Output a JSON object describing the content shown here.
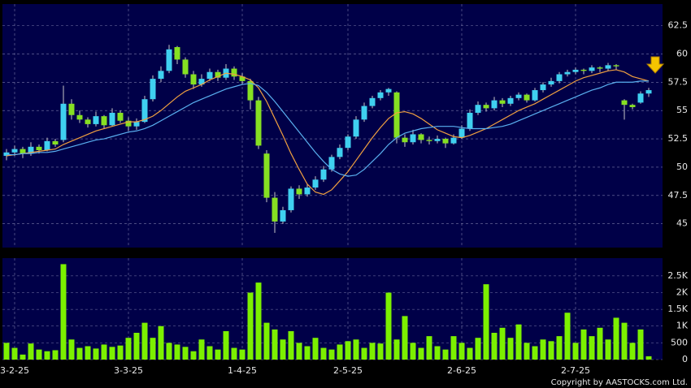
{
  "chart_data": [
    {
      "type": "candlestick",
      "up_color": "#3fd0f0",
      "down_color": "#86e022",
      "wick_color": "#c8c8c8",
      "grid": true,
      "ylim": [
        42.9,
        64.4
      ],
      "yticks": [
        45,
        47.5,
        50,
        52.5,
        55,
        57.5,
        60,
        62.5
      ],
      "ohlc": [
        [
          51.0,
          51.6,
          50.6,
          51.3
        ],
        [
          51.3,
          51.9,
          51.0,
          51.6
        ],
        [
          51.6,
          51.8,
          50.8,
          51.2
        ],
        [
          51.2,
          52.2,
          51.0,
          51.8
        ],
        [
          51.8,
          52.0,
          51.2,
          51.5
        ],
        [
          51.5,
          52.6,
          51.4,
          52.3
        ],
        [
          52.3,
          52.5,
          51.8,
          52.0
        ],
        [
          52.4,
          57.2,
          52.2,
          55.6
        ],
        [
          55.6,
          56.0,
          54.2,
          54.6
        ],
        [
          54.6,
          55.0,
          53.9,
          54.2
        ],
        [
          54.2,
          54.4,
          53.5,
          53.8
        ],
        [
          53.8,
          54.9,
          53.6,
          54.5
        ],
        [
          54.5,
          54.6,
          53.4,
          53.7
        ],
        [
          53.7,
          55.2,
          53.6,
          54.8
        ],
        [
          54.8,
          55.0,
          53.9,
          54.1
        ],
        [
          54.1,
          54.4,
          53.2,
          53.6
        ],
        [
          53.6,
          54.3,
          53.3,
          54.0
        ],
        [
          54.0,
          56.3,
          53.9,
          56.0
        ],
        [
          56.0,
          58.1,
          55.8,
          57.8
        ],
        [
          57.8,
          58.9,
          57.5,
          58.5
        ],
        [
          58.5,
          60.8,
          58.3,
          60.4
        ],
        [
          60.6,
          60.7,
          59.1,
          59.5
        ],
        [
          59.5,
          59.7,
          57.9,
          58.2
        ],
        [
          58.2,
          58.5,
          56.9,
          57.3
        ],
        [
          57.3,
          58.2,
          57.1,
          57.8
        ],
        [
          57.8,
          58.7,
          57.6,
          58.4
        ],
        [
          58.4,
          58.6,
          57.6,
          57.9
        ],
        [
          57.9,
          59.1,
          57.7,
          58.7
        ],
        [
          58.7,
          58.9,
          57.7,
          58.0
        ],
        [
          58.0,
          58.3,
          57.3,
          57.6
        ],
        [
          57.6,
          57.8,
          55.1,
          55.9
        ],
        [
          55.9,
          56.2,
          51.6,
          51.9
        ],
        [
          51.2,
          51.5,
          46.9,
          47.3
        ],
        [
          47.3,
          47.8,
          44.2,
          45.2
        ],
        [
          45.2,
          46.5,
          45.0,
          46.2
        ],
        [
          46.2,
          48.3,
          46.0,
          48.1
        ],
        [
          48.1,
          48.4,
          47.2,
          47.6
        ],
        [
          47.6,
          48.5,
          47.4,
          48.2
        ],
        [
          48.2,
          49.2,
          48.0,
          48.9
        ],
        [
          48.9,
          50.1,
          48.7,
          49.8
        ],
        [
          49.8,
          51.1,
          49.6,
          50.9
        ],
        [
          50.9,
          52.0,
          50.7,
          51.7
        ],
        [
          51.7,
          52.9,
          51.5,
          52.7
        ],
        [
          52.7,
          54.5,
          52.5,
          54.2
        ],
        [
          54.2,
          55.7,
          54.0,
          55.4
        ],
        [
          55.4,
          56.3,
          55.2,
          56.1
        ],
        [
          56.1,
          56.8,
          55.9,
          56.6
        ],
        [
          56.6,
          57.0,
          56.3,
          56.9
        ],
        [
          56.6,
          56.7,
          52.1,
          52.6
        ],
        [
          52.6,
          52.9,
          51.8,
          52.2
        ],
        [
          52.2,
          53.3,
          52.0,
          52.9
        ],
        [
          52.9,
          53.0,
          52.1,
          52.4
        ],
        [
          52.4,
          52.7,
          52.0,
          52.3
        ],
        [
          52.3,
          52.8,
          52.1,
          52.5
        ],
        [
          52.5,
          52.6,
          51.7,
          52.1
        ],
        [
          52.1,
          52.9,
          52.0,
          52.6
        ],
        [
          52.6,
          53.7,
          52.5,
          53.4
        ],
        [
          53.4,
          55.1,
          53.2,
          54.8
        ],
        [
          54.8,
          55.8,
          54.6,
          55.5
        ],
        [
          55.5,
          55.7,
          54.9,
          55.2
        ],
        [
          55.2,
          56.2,
          55.0,
          55.9
        ],
        [
          55.9,
          56.1,
          55.3,
          55.6
        ],
        [
          55.6,
          56.3,
          55.4,
          56.1
        ],
        [
          56.1,
          56.6,
          55.9,
          56.4
        ],
        [
          56.4,
          56.5,
          55.7,
          55.9
        ],
        [
          55.9,
          57.0,
          55.8,
          56.8
        ],
        [
          56.8,
          57.5,
          56.6,
          57.3
        ],
        [
          57.3,
          57.9,
          57.1,
          57.6
        ],
        [
          57.6,
          58.4,
          57.4,
          58.2
        ],
        [
          58.2,
          58.6,
          58.0,
          58.4
        ],
        [
          58.4,
          58.8,
          58.2,
          58.6
        ],
        [
          58.6,
          58.7,
          58.2,
          58.5
        ],
        [
          58.5,
          59.0,
          58.3,
          58.8
        ],
        [
          58.8,
          58.9,
          58.4,
          58.7
        ],
        [
          58.7,
          59.2,
          58.5,
          59.0
        ],
        [
          59.0,
          59.1,
          58.6,
          58.9
        ],
        [
          55.9,
          56.0,
          54.2,
          55.5
        ],
        [
          55.5,
          55.6,
          55.1,
          55.3
        ],
        [
          55.7,
          56.7,
          55.6,
          56.5
        ],
        [
          56.5,
          57.0,
          56.2,
          56.8
        ]
      ],
      "series": [
        {
          "color": "#f0a040",
          "values": [
            51.0,
            51.1,
            51.2,
            51.3,
            51.4,
            51.5,
            51.6,
            52.0,
            52.3,
            52.6,
            52.9,
            53.2,
            53.4,
            53.6,
            53.8,
            54.0,
            54.0,
            54.2,
            54.5,
            55.0,
            55.6,
            56.2,
            56.7,
            57.0,
            57.3,
            57.7,
            58.0,
            58.3,
            58.2,
            58.0,
            57.7,
            57.0,
            55.8,
            54.3,
            52.8,
            51.2,
            49.8,
            48.5,
            47.8,
            47.6,
            48.0,
            48.8,
            49.6,
            50.6,
            51.6,
            52.6,
            53.5,
            54.3,
            54.8,
            54.9,
            54.7,
            54.3,
            53.8,
            53.3,
            53.0,
            52.7,
            52.6,
            52.8,
            53.1,
            53.4,
            53.8,
            54.2,
            54.6,
            55.0,
            55.3,
            55.6,
            56.0,
            56.4,
            56.8,
            57.2,
            57.6,
            57.9,
            58.1,
            58.3,
            58.5,
            58.6,
            58.4,
            58.0,
            57.8,
            57.6
          ]
        },
        {
          "color": "#5ab0f0",
          "values": [
            51.1,
            51.1,
            51.2,
            51.2,
            51.3,
            51.3,
            51.4,
            51.6,
            51.8,
            52.0,
            52.2,
            52.4,
            52.5,
            52.7,
            52.9,
            53.1,
            53.2,
            53.4,
            53.7,
            54.1,
            54.5,
            54.9,
            55.3,
            55.7,
            56.0,
            56.3,
            56.6,
            56.9,
            57.1,
            57.3,
            57.4,
            57.2,
            56.6,
            55.8,
            54.9,
            54.0,
            53.1,
            52.2,
            51.3,
            50.5,
            49.8,
            49.4,
            49.2,
            49.3,
            49.8,
            50.5,
            51.2,
            52.0,
            52.6,
            53.0,
            53.2,
            53.4,
            53.5,
            53.6,
            53.6,
            53.6,
            53.5,
            53.4,
            53.4,
            53.4,
            53.5,
            53.6,
            53.8,
            54.1,
            54.4,
            54.7,
            55.0,
            55.3,
            55.6,
            55.9,
            56.2,
            56.5,
            56.8,
            57.0,
            57.3,
            57.5,
            57.5,
            57.5,
            57.6,
            57.6
          ]
        }
      ]
    },
    {
      "type": "bar",
      "color": "#7cf000",
      "grid": true,
      "ylim": [
        0,
        3030
      ],
      "yticks": [
        0,
        500,
        {
          "value": 1000,
          "label": "1K"
        },
        {
          "value": 1500,
          "label": "1.5K"
        },
        {
          "value": 2000,
          "label": "2K"
        },
        {
          "value": 2500,
          "label": "2.5K"
        }
      ],
      "xticks": [
        {
          "value": 1,
          "label": "3-2-25"
        },
        {
          "value": 15,
          "label": "3-3-25"
        },
        {
          "value": 29,
          "label": "1-4-25"
        },
        {
          "value": 42,
          "label": "2-5-25"
        },
        {
          "value": 56,
          "label": "2-6-25"
        },
        {
          "value": 70,
          "label": "2-7-25"
        }
      ],
      "values": [
        500,
        350,
        150,
        480,
        300,
        250,
        280,
        2850,
        600,
        350,
        400,
        330,
        450,
        380,
        420,
        650,
        800,
        1100,
        650,
        1000,
        500,
        450,
        380,
        250,
        600,
        400,
        300,
        850,
        350,
        300,
        2000,
        2300,
        1100,
        900,
        600,
        850,
        500,
        400,
        650,
        350,
        300,
        450,
        550,
        600,
        350,
        500,
        480,
        2000,
        600,
        1300,
        500,
        350,
        700,
        400,
        300,
        700,
        500,
        350,
        650,
        2250,
        800,
        950,
        650,
        1050,
        500,
        400,
        600,
        550,
        700,
        1400,
        500,
        900,
        700,
        950,
        600,
        1250,
        1100,
        500,
        900,
        100
      ]
    }
  ],
  "footer": "Copyright by AASTOCKS.com Ltd."
}
